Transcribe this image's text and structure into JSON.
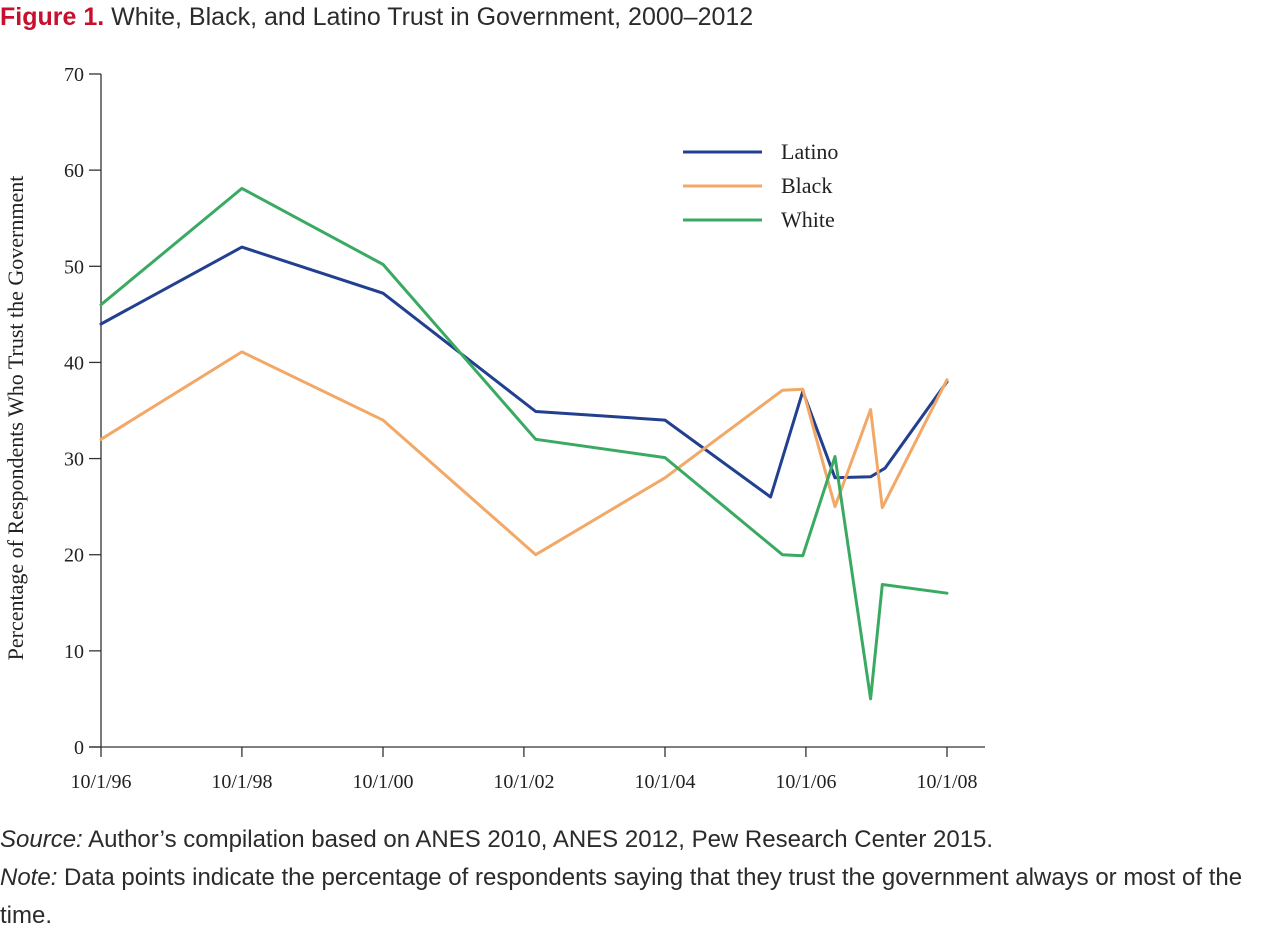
{
  "figure": {
    "label": "Figure 1.",
    "title": "White, Black, and Latino Trust in Government, 2000–2012"
  },
  "chart_data": {
    "type": "line",
    "title": "White, Black, and Latino Trust in Government, 2000–2012",
    "xlabel": "",
    "ylabel": "Percentage of Respondents Who Trust the Government",
    "x_tick_labels": [
      "10/1/96",
      "10/1/98",
      "10/1/00",
      "10/1/02",
      "10/1/04",
      "10/1/06",
      "10/1/08"
    ],
    "x_ticks": [
      "1996-10-01",
      "1998-10-01",
      "2000-10-01",
      "2002-10-01",
      "2004-10-01",
      "2006-10-01",
      "2008-10-01"
    ],
    "xlim": [
      "1996-10-01",
      "2009-05-01"
    ],
    "ylim": [
      0,
      70
    ],
    "y_ticks": [
      0,
      10,
      20,
      30,
      40,
      50,
      60,
      70
    ],
    "grid": false,
    "legend_position": "top-right",
    "series": [
      {
        "name": "Latino",
        "color": "#22408f",
        "points": [
          [
            "1996-10-01",
            44
          ],
          [
            "1998-10-01",
            52
          ],
          [
            "2000-10-01",
            47.2
          ],
          [
            "2002-12-01",
            34.9
          ],
          [
            "2004-10-01",
            34
          ],
          [
            "2006-04-01",
            26
          ],
          [
            "2006-09-15",
            37
          ],
          [
            "2007-03-01",
            28
          ],
          [
            "2007-09-01",
            28.1
          ],
          [
            "2007-11-15",
            29
          ],
          [
            "2008-10-01",
            38
          ]
        ]
      },
      {
        "name": "Black",
        "color": "#f2a867",
        "points": [
          [
            "1996-10-01",
            32
          ],
          [
            "1998-10-01",
            41.1
          ],
          [
            "2000-10-01",
            34
          ],
          [
            "2002-12-01",
            20
          ],
          [
            "2004-10-01",
            28
          ],
          [
            "2006-06-01",
            37.1
          ],
          [
            "2006-09-15",
            37.2
          ],
          [
            "2007-03-01",
            25
          ],
          [
            "2007-09-01",
            35.1
          ],
          [
            "2007-11-01",
            24.9
          ],
          [
            "2008-10-01",
            38.2
          ]
        ]
      },
      {
        "name": "White",
        "color": "#3aaa63",
        "points": [
          [
            "1996-10-01",
            46
          ],
          [
            "1998-10-01",
            58.1
          ],
          [
            "2000-10-01",
            50.2
          ],
          [
            "2002-12-01",
            32
          ],
          [
            "2004-10-01",
            30.1
          ],
          [
            "2006-06-01",
            20
          ],
          [
            "2006-09-15",
            19.9
          ],
          [
            "2007-03-01",
            30.2
          ],
          [
            "2007-09-01",
            5
          ],
          [
            "2007-11-01",
            16.9
          ],
          [
            "2008-10-01",
            16
          ]
        ]
      }
    ]
  },
  "source": {
    "lead": "Source:",
    "text": " Author’s compilation based on ANES 2010, ANES 2012, Pew Research Center 2015."
  },
  "note": {
    "lead": "Note:",
    "text": " Data points indicate the percentage of respondents saying that they trust the government always or most of the time."
  }
}
